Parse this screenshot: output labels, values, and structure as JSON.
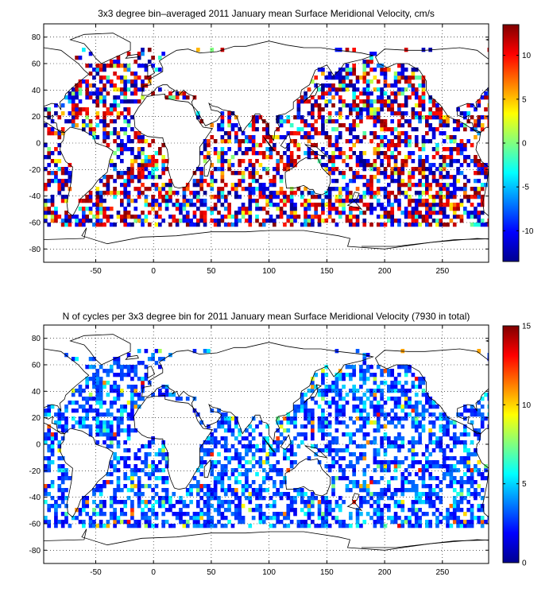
{
  "chart_data": [
    {
      "type": "heatmap",
      "title": "3x3 degree bin–averaged 2011 January mean Surface Meridional Velocity, cm/s",
      "xlabel": "",
      "ylabel": "",
      "xlim": [
        -95,
        290
      ],
      "ylim": [
        -90,
        90
      ],
      "xticks": [
        -50,
        0,
        50,
        100,
        150,
        200,
        250
      ],
      "yticks": [
        -80,
        -60,
        -40,
        -20,
        0,
        20,
        40,
        60,
        80
      ],
      "colorbar": {
        "min": -13.5,
        "max": 13.5,
        "ticks": [
          -10,
          -5,
          0,
          5,
          10
        ]
      },
      "bin_size_deg": 3,
      "colormap": "jet",
      "grid": true
    },
    {
      "type": "heatmap",
      "title": "N of cycles per 3x3 degree bin for 2011 January mean Surface Meridional Velocity (7930 in total)",
      "xlabel": "",
      "ylabel": "",
      "xlim": [
        -95,
        290
      ],
      "ylim": [
        -90,
        90
      ],
      "xticks": [
        -50,
        0,
        50,
        100,
        150,
        200,
        250
      ],
      "yticks": [
        -80,
        -60,
        -40,
        -20,
        0,
        20,
        40,
        60,
        80
      ],
      "colorbar": {
        "min": 0,
        "max": 15,
        "ticks": [
          0,
          5,
          10,
          15
        ]
      },
      "bin_size_deg": 3,
      "colormap": "jet",
      "grid": true
    }
  ]
}
